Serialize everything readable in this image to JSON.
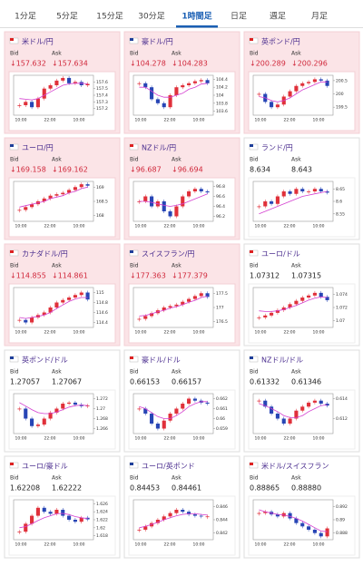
{
  "tabs": [
    "1分足",
    "5分足",
    "15分足",
    "30分足",
    "1時間足",
    "日足",
    "週足",
    "月足"
  ],
  "selected_tab": 4,
  "labels": {
    "bid": "Bid",
    "ask": "Ask"
  },
  "chart_x_labels": [
    "10:00",
    "22:00",
    "10:00"
  ],
  "cards": [
    {
      "name": "米ドル/円",
      "bid": "↓157.632",
      "ask": "↓157.634",
      "highlight": true,
      "chart": {
        "ylim": [
          157.1,
          157.7
        ],
        "yticks": [
          157.6,
          157.5,
          157.4,
          157.3,
          157.2
        ],
        "closes": [
          157.25,
          157.3,
          157.22,
          157.35,
          157.5,
          157.55,
          157.62,
          157.66,
          157.58,
          157.6,
          157.55,
          157.57
        ],
        "ma": [
          157.35,
          157.34,
          157.33,
          157.35,
          157.4,
          157.45,
          157.5,
          157.55,
          157.57,
          157.58,
          157.58,
          157.57
        ]
      }
    },
    {
      "name": "豪ドル/円",
      "bid": "↓104.278",
      "ask": "↓104.283",
      "highlight": true,
      "chart": {
        "ylim": [
          103.5,
          104.5
        ],
        "yticks": [
          104.4,
          104.2,
          104,
          103.8,
          103.6
        ],
        "closes": [
          104.3,
          104.2,
          103.9,
          103.8,
          103.7,
          104.0,
          104.2,
          104.25,
          104.3,
          104.35,
          104.38,
          104.3
        ],
        "ma": [
          104.2,
          104.2,
          104.1,
          104.0,
          103.95,
          103.95,
          104.0,
          104.05,
          104.15,
          104.2,
          104.28,
          104.3
        ]
      }
    },
    {
      "name": "英ポンド/円",
      "bid": "↓200.289",
      "ask": "↓200.296",
      "highlight": true,
      "chart": {
        "ylim": [
          199.2,
          200.7
        ],
        "yticks": [
          200.5,
          200,
          199.5
        ],
        "closes": [
          200.0,
          199.7,
          199.5,
          199.6,
          199.9,
          200.1,
          200.3,
          200.4,
          200.45,
          200.55,
          200.5,
          200.3
        ],
        "ma": [
          199.9,
          199.85,
          199.75,
          199.7,
          199.75,
          199.85,
          200.0,
          200.15,
          200.25,
          200.35,
          200.45,
          200.45
        ]
      }
    },
    {
      "name": "ユーロ/円",
      "bid": "↓169.158",
      "ask": "↓169.162",
      "highlight": true,
      "chart": {
        "ylim": [
          167.8,
          169.2
        ],
        "yticks": [
          169,
          168.5,
          168
        ],
        "closes": [
          168.2,
          168.3,
          168.4,
          168.5,
          168.6,
          168.7,
          168.75,
          168.8,
          168.9,
          169.0,
          169.1,
          169.05
        ],
        "ma": [
          168.3,
          168.35,
          168.4,
          168.45,
          168.5,
          168.6,
          168.65,
          168.7,
          168.8,
          168.85,
          168.95,
          169.0
        ]
      }
    },
    {
      "name": "NZドル/円",
      "bid": "↓96.687",
      "ask": "↓96.694",
      "highlight": true,
      "chart": {
        "ylim": [
          96.1,
          96.9
        ],
        "yticks": [
          96.8,
          96.6,
          96.4,
          96.2
        ],
        "closes": [
          96.5,
          96.6,
          96.4,
          96.5,
          96.3,
          96.2,
          96.4,
          96.6,
          96.7,
          96.75,
          96.7,
          96.68
        ],
        "ma": [
          96.5,
          96.5,
          96.48,
          96.45,
          96.42,
          96.4,
          96.42,
          96.45,
          96.5,
          96.55,
          96.6,
          96.65
        ]
      }
    },
    {
      "name": "ランド/円",
      "bid": "8.634",
      "ask": "8.643",
      "highlight": false,
      "chart": {
        "ylim": [
          8.52,
          8.68
        ],
        "yticks": [
          8.65,
          8.6,
          8.55
        ],
        "closes": [
          8.58,
          8.6,
          8.59,
          8.62,
          8.64,
          8.63,
          8.65,
          8.64,
          8.64,
          8.65,
          8.64,
          8.635
        ],
        "ma": [
          8.55,
          8.56,
          8.57,
          8.58,
          8.59,
          8.6,
          8.61,
          8.62,
          8.625,
          8.63,
          8.635,
          8.64
        ]
      }
    },
    {
      "name": "カナダドル/円",
      "bid": "↓114.855",
      "ask": "↓114.861",
      "highlight": true,
      "chart": {
        "ylim": [
          114.3,
          115.1
        ],
        "yticks": [
          115,
          114.8,
          114.6,
          114.4
        ],
        "closes": [
          114.45,
          114.4,
          114.5,
          114.55,
          114.6,
          114.7,
          114.8,
          114.85,
          114.9,
          114.95,
          115.0,
          114.86
        ],
        "ma": [
          114.5,
          114.48,
          114.5,
          114.52,
          114.55,
          114.6,
          114.68,
          114.75,
          114.82,
          114.87,
          114.9,
          114.9
        ]
      }
    },
    {
      "name": "スイスフラン/円",
      "bid": "↓177.363",
      "ask": "↓177.379",
      "highlight": true,
      "chart": {
        "ylim": [
          176.3,
          177.7
        ],
        "yticks": [
          177.5,
          177,
          176.5
        ],
        "closes": [
          176.6,
          176.7,
          176.8,
          176.9,
          177.0,
          177.05,
          177.1,
          177.2,
          177.3,
          177.4,
          177.5,
          177.37
        ],
        "ma": [
          176.7,
          176.72,
          176.78,
          176.85,
          176.9,
          176.98,
          177.03,
          177.1,
          177.18,
          177.25,
          177.35,
          177.4
        ]
      }
    },
    {
      "name": "ユーロ/ドル",
      "bid": "1.07312",
      "ask": "1.07315",
      "highlight": false,
      "chart": {
        "ylim": [
          1.069,
          1.075
        ],
        "yticks": [
          1.074,
          1.072,
          1.07
        ],
        "closes": [
          1.0705,
          1.0708,
          1.0712,
          1.0716,
          1.072,
          1.0725,
          1.073,
          1.0735,
          1.0738,
          1.0742,
          1.0736,
          1.0731
        ],
        "ma": [
          1.0715,
          1.0714,
          1.0714,
          1.0715,
          1.0717,
          1.072,
          1.0723,
          1.0727,
          1.0731,
          1.0734,
          1.0736,
          1.0735
        ]
      }
    },
    {
      "name": "英ポンド/ドル",
      "bid": "1.27057",
      "ask": "1.27067",
      "highlight": false,
      "chart": {
        "ylim": [
          1.265,
          1.273
        ],
        "yticks": [
          1.272,
          1.27,
          1.268,
          1.266
        ],
        "closes": [
          1.27,
          1.268,
          1.2665,
          1.2668,
          1.268,
          1.2692,
          1.27,
          1.271,
          1.2712,
          1.2708,
          1.2705,
          1.2706
        ],
        "ma": [
          1.2712,
          1.2705,
          1.2698,
          1.2692,
          1.269,
          1.269,
          1.2693,
          1.2698,
          1.2703,
          1.2706,
          1.2707,
          1.2706
        ]
      }
    },
    {
      "name": "豪ドル/ドル",
      "bid": "0.66153",
      "ask": "0.66157",
      "highlight": false,
      "chart": {
        "ylim": [
          0.6585,
          0.6625
        ],
        "yticks": [
          0.662,
          0.661,
          0.66,
          0.659
        ],
        "closes": [
          0.661,
          0.6605,
          0.6595,
          0.659,
          0.6598,
          0.6605,
          0.661,
          0.6615,
          0.662,
          0.6618,
          0.6616,
          0.6615
        ],
        "ma": [
          0.6612,
          0.661,
          0.6606,
          0.6602,
          0.66,
          0.66,
          0.6603,
          0.6607,
          0.6612,
          0.6615,
          0.6617,
          0.6617
        ]
      }
    },
    {
      "name": "NZドル/ドル",
      "bid": "0.61332",
      "ask": "0.61346",
      "highlight": false,
      "chart": {
        "ylim": [
          0.6105,
          0.6145
        ],
        "yticks": [
          0.614,
          0.612
        ],
        "closes": [
          0.6138,
          0.6132,
          0.6125,
          0.612,
          0.6115,
          0.612,
          0.6128,
          0.6132,
          0.6136,
          0.6138,
          0.6135,
          0.6133
        ],
        "ma": [
          0.6135,
          0.6133,
          0.613,
          0.6127,
          0.6123,
          0.6121,
          0.6121,
          0.6123,
          0.6127,
          0.613,
          0.6133,
          0.6134
        ]
      }
    },
    {
      "name": "ユーロ/豪ドル",
      "bid": "1.62208",
      "ask": "1.62222",
      "highlight": false,
      "chart": {
        "ylim": [
          1.617,
          1.627
        ],
        "yticks": [
          1.626,
          1.624,
          1.622,
          1.62,
          1.618
        ],
        "closes": [
          1.619,
          1.621,
          1.623,
          1.625,
          1.624,
          1.6235,
          1.6245,
          1.623,
          1.622,
          1.6215,
          1.6225,
          1.6221
        ],
        "ma": [
          1.62,
          1.6203,
          1.621,
          1.6218,
          1.6225,
          1.623,
          1.6235,
          1.6236,
          1.6233,
          1.6228,
          1.6225,
          1.6223
        ]
      }
    },
    {
      "name": "ユーロ/英ポンド",
      "bid": "0.84453",
      "ask": "0.84461",
      "highlight": false,
      "chart": {
        "ylim": [
          0.841,
          0.847
        ],
        "yticks": [
          0.846,
          0.844,
          0.842
        ],
        "closes": [
          0.8425,
          0.843,
          0.8435,
          0.844,
          0.8445,
          0.845,
          0.8455,
          0.8452,
          0.8448,
          0.8446,
          0.8445,
          0.8445
        ],
        "ma": [
          0.8428,
          0.843,
          0.8433,
          0.8436,
          0.844,
          0.8443,
          0.8446,
          0.8448,
          0.8449,
          0.8449,
          0.8448,
          0.8447
        ]
      }
    },
    {
      "name": "米ドル/スイスフラン",
      "bid": "0.88865",
      "ask": "0.88880",
      "highlight": false,
      "chart": {
        "ylim": [
          0.887,
          0.893
        ],
        "yticks": [
          0.892,
          0.89,
          0.888
        ],
        "closes": [
          0.891,
          0.8912,
          0.8908,
          0.8905,
          0.891,
          0.8902,
          0.8895,
          0.889,
          0.8885,
          0.888,
          0.8875,
          0.8887
        ],
        "ma": [
          0.8915,
          0.8912,
          0.891,
          0.8908,
          0.8907,
          0.8905,
          0.8902,
          0.8898,
          0.8893,
          0.8888,
          0.8883,
          0.8882
        ]
      }
    }
  ]
}
